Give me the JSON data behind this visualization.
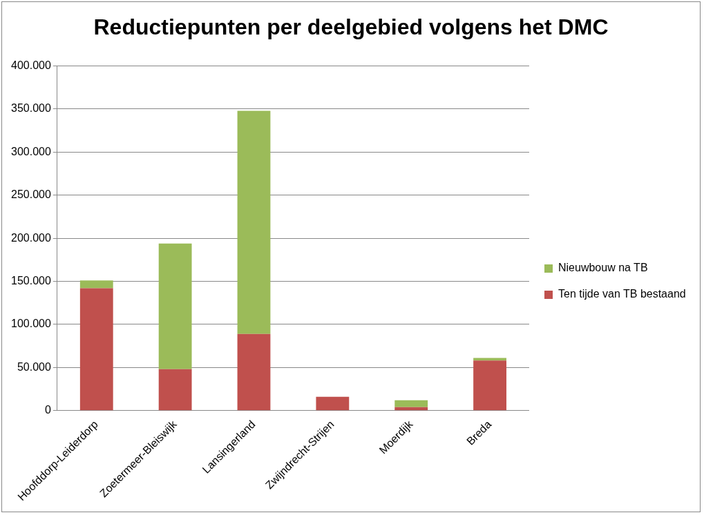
{
  "chart_data": {
    "type": "bar",
    "title": "Reductiepunten per deelgebied volgens het DMC",
    "categories": [
      "Hoofddorp-Leiderdorp",
      "Zoetermeer-Bleiswijk",
      "Lansingerland",
      "Zwijndrecht-Strijen",
      "Moerdijk",
      "Breda"
    ],
    "stacked": true,
    "series": [
      {
        "name": "Ten tijde van TB bestaand",
        "color": "#c0504d",
        "values": [
          142000,
          48000,
          89000,
          16000,
          4000,
          58000
        ]
      },
      {
        "name": "Nieuwbouw na TB",
        "color": "#9bbb59",
        "values": [
          9000,
          146000,
          259000,
          0,
          8000,
          3000
        ]
      }
    ],
    "ylim": [
      0,
      400000
    ],
    "yticks": [
      {
        "value": 0,
        "label": "0"
      },
      {
        "value": 50000,
        "label": "50.000"
      },
      {
        "value": 100000,
        "label": "100.000"
      },
      {
        "value": 150000,
        "label": "150.000"
      },
      {
        "value": 200000,
        "label": "200.000"
      },
      {
        "value": 250000,
        "label": "250.000"
      },
      {
        "value": 300000,
        "label": "300.000"
      },
      {
        "value": 350000,
        "label": "350.000"
      },
      {
        "value": 400000,
        "label": "400.000"
      }
    ],
    "grid": "y",
    "legend": "right"
  }
}
